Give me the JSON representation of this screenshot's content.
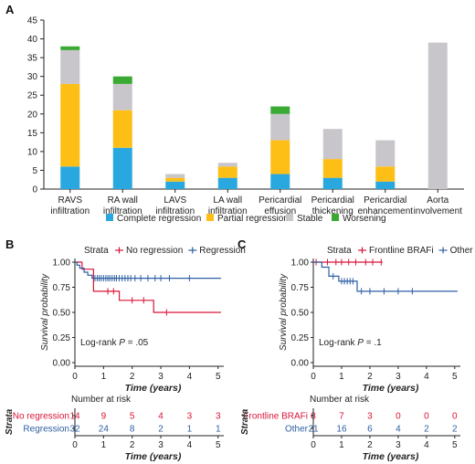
{
  "panels": {
    "a": "A",
    "b": "B",
    "c": "C"
  },
  "colors": {
    "complete": "#29A8DF",
    "partial": "#FDBE15",
    "stable": "#C8C6CB",
    "worsening": "#3BAA35",
    "red": "#D8143A",
    "blue": "#2D5FA3",
    "axis": "#222222"
  },
  "chart_data": [
    {
      "type": "bar",
      "stacked": true,
      "categories": [
        [
          "RAVS",
          "infiltration"
        ],
        [
          "RA wall",
          "infiltration"
        ],
        [
          "LAVS",
          "infiltration"
        ],
        [
          "LA wall",
          "infiltration"
        ],
        [
          "Pericardial",
          "effusion"
        ],
        [
          "Pericardial",
          "thickening"
        ],
        [
          "Pericardial",
          "enhancement"
        ],
        [
          "Aorta",
          "involvement"
        ]
      ],
      "series": [
        {
          "name": "Complete regression",
          "values": [
            6,
            11,
            2,
            3,
            4,
            3,
            2,
            0
          ]
        },
        {
          "name": "Partial regression",
          "values": [
            22,
            10,
            1,
            3,
            9,
            5,
            4,
            0
          ]
        },
        {
          "name": "Stable",
          "values": [
            9,
            7,
            1,
            1,
            7,
            8,
            7,
            39
          ]
        },
        {
          "name": "Worsening",
          "values": [
            1,
            2,
            0,
            0,
            2,
            0,
            0,
            0
          ]
        }
      ],
      "ylim": [
        0,
        45
      ],
      "yticks": [
        0,
        5,
        10,
        15,
        20,
        25,
        30,
        35,
        40,
        45
      ],
      "legend_position": "bottom"
    },
    {
      "type": "line",
      "kaplan_meier": true,
      "legend_title": "Strata",
      "ylabel": "Survival probability",
      "xlabel": "Time (years)",
      "xlim": [
        0,
        5.2
      ],
      "ylim": [
        0,
        1
      ],
      "xticks": [
        0,
        1,
        2,
        3,
        4,
        5
      ],
      "yticks": [
        "0.00",
        "0.25",
        "0.50",
        "0.75",
        "1.00"
      ],
      "annotation_pre": "Log-rank ",
      "annotation_p": "P",
      "annotation_post": " = .05",
      "series": [
        {
          "name": "No regression",
          "color_key": "red",
          "steps": [
            [
              0,
              1
            ],
            [
              0.25,
              0.93
            ],
            [
              0.65,
              0.71
            ],
            [
              1.55,
              0.62
            ],
            [
              2.75,
              0.5
            ],
            [
              5.1,
              0.5
            ]
          ],
          "censors": [
            [
              1.15,
              0.71
            ],
            [
              1.35,
              0.71
            ],
            [
              2.0,
              0.62
            ],
            [
              2.4,
              0.62
            ],
            [
              3.2,
              0.5
            ]
          ]
        },
        {
          "name": "Regression",
          "color_key": "blue",
          "steps": [
            [
              0,
              1
            ],
            [
              0.07,
              0.97
            ],
            [
              0.17,
              0.94
            ],
            [
              0.32,
              0.9
            ],
            [
              0.45,
              0.87
            ],
            [
              0.6,
              0.84
            ],
            [
              5.1,
              0.84
            ]
          ],
          "censors": [
            [
              0.7,
              0.84
            ],
            [
              0.78,
              0.84
            ],
            [
              0.85,
              0.84
            ],
            [
              0.92,
              0.84
            ],
            [
              1.0,
              0.84
            ],
            [
              1.08,
              0.84
            ],
            [
              1.15,
              0.84
            ],
            [
              1.22,
              0.84
            ],
            [
              1.3,
              0.84
            ],
            [
              1.38,
              0.84
            ],
            [
              1.45,
              0.84
            ],
            [
              1.55,
              0.84
            ],
            [
              1.65,
              0.84
            ],
            [
              1.75,
              0.84
            ],
            [
              1.85,
              0.84
            ],
            [
              1.95,
              0.84
            ],
            [
              2.1,
              0.84
            ],
            [
              2.3,
              0.84
            ],
            [
              2.55,
              0.84
            ],
            [
              2.8,
              0.84
            ],
            [
              3.0,
              0.84
            ],
            [
              3.3,
              0.84
            ],
            [
              4.0,
              0.84
            ]
          ]
        }
      ],
      "risk_table": {
        "title": "Number at risk",
        "strata_label": "Strata",
        "xlabel": "Time (years)",
        "rows": [
          {
            "name": "No regression",
            "color_key": "red",
            "values": [
              "14",
              "9",
              "5",
              "4",
              "3",
              "3"
            ]
          },
          {
            "name": "Regression",
            "color_key": "blue",
            "values": [
              "32",
              "24",
              "8",
              "2",
              "1",
              "1"
            ]
          }
        ]
      }
    },
    {
      "type": "line",
      "kaplan_meier": true,
      "legend_title": "Strata",
      "ylabel": "Survival probability",
      "xlabel": "Time (years)",
      "xlim": [
        0,
        5.2
      ],
      "ylim": [
        0,
        1
      ],
      "xticks": [
        0,
        1,
        2,
        3,
        4,
        5
      ],
      "yticks": [
        "0.00",
        "0.25",
        "0.50",
        "0.75",
        "1.00"
      ],
      "annotation_pre": "Log-rank ",
      "annotation_p": "P",
      "annotation_post": " = .1",
      "series": [
        {
          "name": "Frontline BRAFi",
          "color_key": "red",
          "steps": [
            [
              0,
              1
            ],
            [
              2.45,
              1
            ]
          ],
          "censors": [
            [
              0.1,
              1
            ],
            [
              0.5,
              1
            ],
            [
              0.8,
              1
            ],
            [
              1.0,
              1
            ],
            [
              1.25,
              1
            ],
            [
              1.5,
              1
            ],
            [
              1.85,
              1
            ],
            [
              2.1,
              1
            ],
            [
              2.4,
              1
            ]
          ]
        },
        {
          "name": "Other",
          "color_key": "blue",
          "steps": [
            [
              0,
              1
            ],
            [
              0.3,
              0.95
            ],
            [
              0.55,
              0.86
            ],
            [
              0.9,
              0.81
            ],
            [
              1.55,
              0.71
            ],
            [
              5.1,
              0.71
            ]
          ],
          "censors": [
            [
              0.7,
              0.86
            ],
            [
              1.0,
              0.81
            ],
            [
              1.1,
              0.81
            ],
            [
              1.2,
              0.81
            ],
            [
              1.3,
              0.81
            ],
            [
              1.4,
              0.81
            ],
            [
              1.7,
              0.71
            ],
            [
              2.0,
              0.71
            ],
            [
              2.5,
              0.71
            ],
            [
              3.0,
              0.71
            ],
            [
              3.5,
              0.71
            ]
          ]
        }
      ],
      "risk_table": {
        "title": "Number at risk",
        "strata_label": "Strata",
        "xlabel": "Time (years)",
        "rows": [
          {
            "name": "Frontline BRAFi",
            "color_key": "red",
            "values": [
              "8",
              "7",
              "3",
              "0",
              "0",
              "0"
            ]
          },
          {
            "name": "Other",
            "color_key": "blue",
            "values": [
              "21",
              "16",
              "6",
              "4",
              "2",
              "2"
            ]
          }
        ]
      }
    }
  ]
}
